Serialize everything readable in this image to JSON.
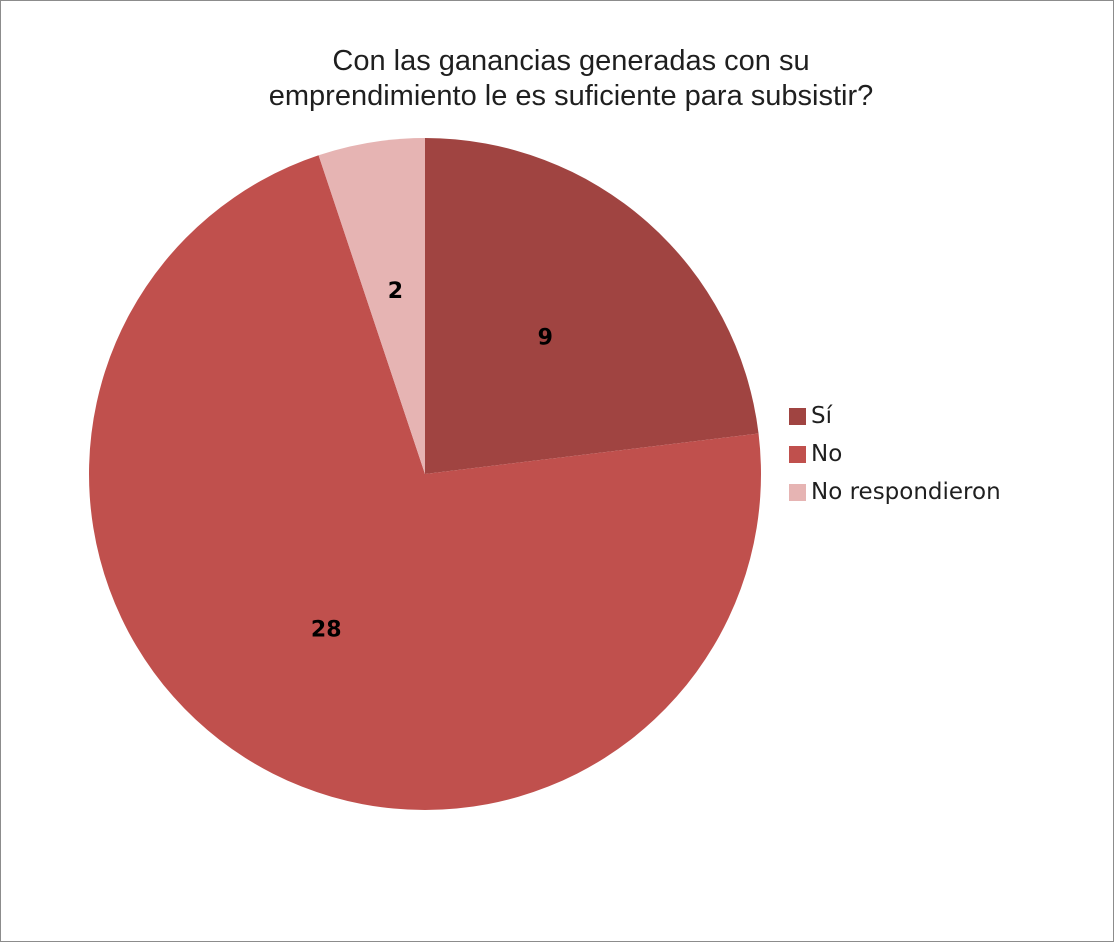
{
  "chart_data": {
    "type": "pie",
    "title_lines": [
      "Con las ganancias generadas con su",
      "emprendimiento le es suficiente para subsistir?"
    ],
    "categories": [
      "Sí",
      "No",
      "No respondieron"
    ],
    "values": [
      9,
      28,
      2
    ],
    "colors": [
      "#a04441",
      "#c0504d",
      "#e6b4b3"
    ],
    "data_labels": [
      "9",
      "28",
      "2"
    ],
    "legend_position": "right",
    "start_angle": "12 o'clock",
    "direction": "clockwise"
  }
}
